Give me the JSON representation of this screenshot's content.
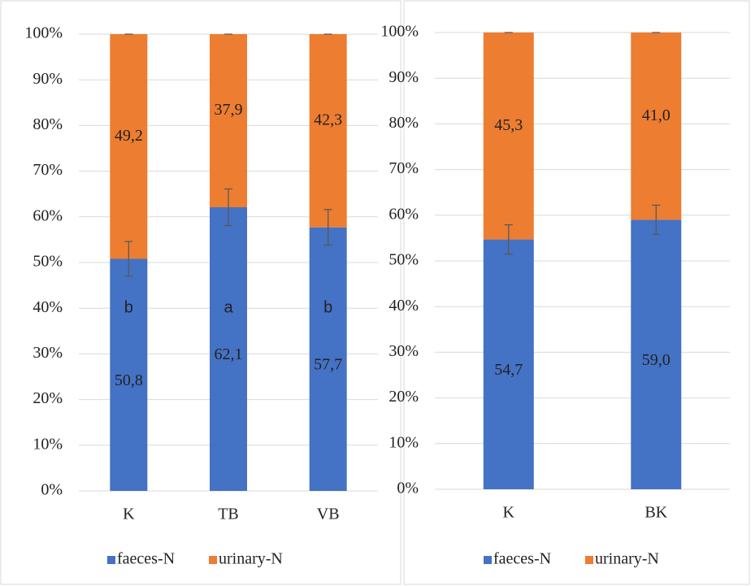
{
  "chart_data": [
    {
      "type": "bar",
      "stacked": true,
      "categories": [
        "K",
        "TB",
        "VB"
      ],
      "series": [
        {
          "name": "faeces-N",
          "color": "#4472c4",
          "values": [
            50.8,
            62.1,
            57.7
          ],
          "value_labels": [
            "50,8",
            "62,1",
            "57,7"
          ],
          "errors": [
            3.8,
            4.0,
            3.9
          ]
        },
        {
          "name": "urinary-N",
          "color": "#ed7d31",
          "values": [
            49.2,
            37.9,
            42.3
          ],
          "value_labels": [
            "49,2",
            "37,9",
            "42,3"
          ],
          "errors": [
            0,
            0,
            0
          ]
        }
      ],
      "significance_labels": [
        "b",
        "a",
        "b"
      ],
      "ylim": [
        0,
        100
      ],
      "yticks": [
        {
          "value": 0,
          "label": "0%"
        },
        {
          "value": 10,
          "label": "10%"
        },
        {
          "value": 20,
          "label": "20%"
        },
        {
          "value": 30,
          "label": "30%"
        },
        {
          "value": 40,
          "label": "40%"
        },
        {
          "value": 50,
          "label": "50%"
        },
        {
          "value": 60,
          "label": "60%"
        },
        {
          "value": 70,
          "label": "70%"
        },
        {
          "value": 80,
          "label": "80%"
        },
        {
          "value": 90,
          "label": "90%"
        },
        {
          "value": 100,
          "label": "100%"
        }
      ],
      "grid": true,
      "legend": "bottom"
    },
    {
      "type": "bar",
      "stacked": true,
      "categories": [
        "K",
        "BK"
      ],
      "series": [
        {
          "name": "faeces-N",
          "color": "#4472c4",
          "values": [
            54.7,
            59.0
          ],
          "value_labels": [
            "54,7",
            "59,0"
          ],
          "errors": [
            3.2,
            3.2
          ]
        },
        {
          "name": "urinary-N",
          "color": "#ed7d31",
          "values": [
            45.3,
            41.0
          ],
          "value_labels": [
            "45,3",
            "41,0"
          ],
          "errors": [
            0,
            0
          ]
        }
      ],
      "ylim": [
        0,
        100
      ],
      "yticks": [
        {
          "value": 0,
          "label": "0%"
        },
        {
          "value": 10,
          "label": "10%"
        },
        {
          "value": 20,
          "label": "20%"
        },
        {
          "value": 30,
          "label": "30%"
        },
        {
          "value": 40,
          "label": "40%"
        },
        {
          "value": 50,
          "label": "50%"
        },
        {
          "value": 60,
          "label": "60%"
        },
        {
          "value": 70,
          "label": "70%"
        },
        {
          "value": 80,
          "label": "80%"
        },
        {
          "value": 90,
          "label": "90%"
        },
        {
          "value": 100,
          "label": "100%"
        }
      ],
      "grid": true,
      "legend": "bottom"
    }
  ]
}
